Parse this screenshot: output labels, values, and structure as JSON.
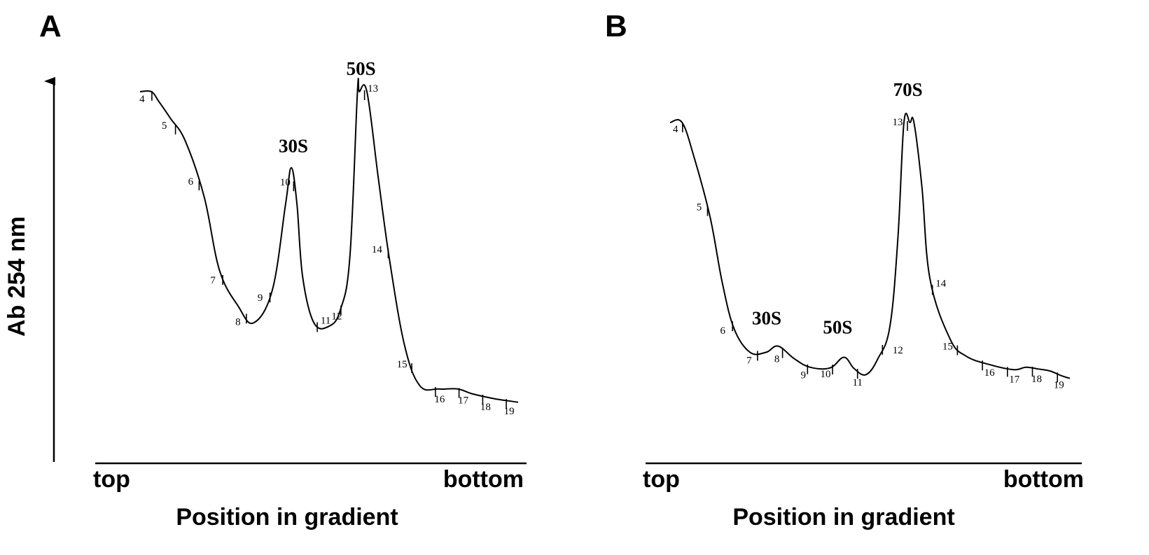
{
  "figure": {
    "ylabel": "Ab 254 nm",
    "panels": [
      {
        "letter": "A",
        "xlabel": "Position in gradient",
        "x_start": "top",
        "x_end": "bottom"
      },
      {
        "letter": "B",
        "xlabel": "Position in gradient",
        "x_start": "top",
        "x_end": "bottom"
      }
    ]
  },
  "chart_data": [
    {
      "type": "line",
      "title": "A",
      "xlabel": "Position in gradient",
      "ylabel": "Ab 254 nm",
      "x_tick_labels": [
        "top",
        "bottom"
      ],
      "ylim": [
        0,
        1
      ],
      "grid": false,
      "x": [
        0,
        0.03,
        0.05,
        0.08,
        0.12,
        0.17,
        0.21,
        0.26,
        0.3,
        0.35,
        0.385,
        0.4,
        0.415,
        0.43,
        0.46,
        0.5,
        0.53,
        0.555,
        0.575,
        0.58,
        0.6,
        0.63,
        0.66,
        0.7,
        0.74,
        0.79,
        0.84,
        0.88,
        0.94,
        1.0
      ],
      "y": [
        1.0,
        1.0,
        0.97,
        0.92,
        0.85,
        0.68,
        0.46,
        0.35,
        0.3,
        0.4,
        0.66,
        0.77,
        0.66,
        0.44,
        0.3,
        0.29,
        0.34,
        0.5,
        1.0,
        1.0,
        1.0,
        0.74,
        0.49,
        0.23,
        0.11,
        0.1,
        0.1,
        0.085,
        0.07,
        0.06
      ],
      "peaks": [
        {
          "label": "30S",
          "x": 0.4,
          "y": 0.77
        },
        {
          "label": "50S",
          "x": 0.59,
          "y": 1.0
        }
      ],
      "fractions": [
        "4",
        "5",
        "6",
        "7",
        "8",
        "9",
        "10",
        "11",
        "12",
        "13",
        "14",
        "15",
        "16",
        "17",
        "18",
        "19"
      ]
    },
    {
      "type": "line",
      "title": "B",
      "xlabel": "Position in gradient",
      "ylabel": "Ab 254 nm",
      "x_tick_labels": [
        "top",
        "bottom"
      ],
      "ylim": [
        0,
        1
      ],
      "grid": false,
      "x": [
        0,
        0.03,
        0.06,
        0.1,
        0.13,
        0.16,
        0.2,
        0.24,
        0.27,
        0.31,
        0.35,
        0.4,
        0.435,
        0.46,
        0.49,
        0.52,
        0.55,
        0.57,
        0.585,
        0.6,
        0.61,
        0.63,
        0.65,
        0.7,
        0.74,
        0.8,
        0.86,
        0.89,
        0.92,
        0.95,
        0.98,
        1.0
      ],
      "y": [
        1.0,
        1.0,
        0.86,
        0.62,
        0.36,
        0.17,
        0.075,
        0.075,
        0.1,
        0.05,
        0.015,
        0.012,
        0.055,
        0.01,
        -0.015,
        0.05,
        0.18,
        0.54,
        1.0,
        1.0,
        1.0,
        0.74,
        0.37,
        0.13,
        0.06,
        0.025,
        0.005,
        0.015,
        0.008,
        0.0,
        -0.02,
        -0.03
      ],
      "peaks": [
        {
          "label": "30S",
          "x": 0.24,
          "y": 0.075
        },
        {
          "label": "50S",
          "x": 0.435,
          "y": 0.055
        },
        {
          "label": "70S",
          "x": 0.6,
          "y": 1.0
        }
      ],
      "fractions": [
        "4",
        "5",
        "6",
        "7",
        "8",
        "9",
        "10",
        "11",
        "12",
        "13",
        "14",
        "15",
        "16",
        "17",
        "18",
        "19"
      ]
    }
  ]
}
